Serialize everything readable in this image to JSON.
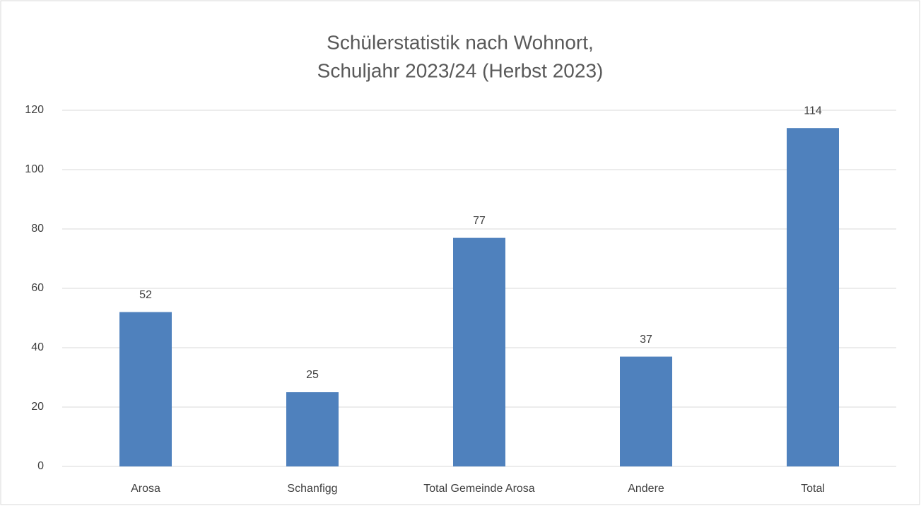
{
  "chart_data": {
    "type": "bar",
    "title": [
      "Schülerstatistik nach Wohnort,",
      "Schuljahr 2023/24 (Herbst 2023)"
    ],
    "categories": [
      "Arosa",
      "Schanfigg",
      "Total Gemeinde Arosa",
      "Andere",
      "Total"
    ],
    "values": [
      52,
      25,
      77,
      37,
      114
    ],
    "color": "#4f81bd",
    "ylim": [
      0,
      120
    ],
    "yticks": [
      0,
      20,
      40,
      60,
      80,
      100,
      120
    ],
    "grid": true,
    "data_labels": true
  }
}
